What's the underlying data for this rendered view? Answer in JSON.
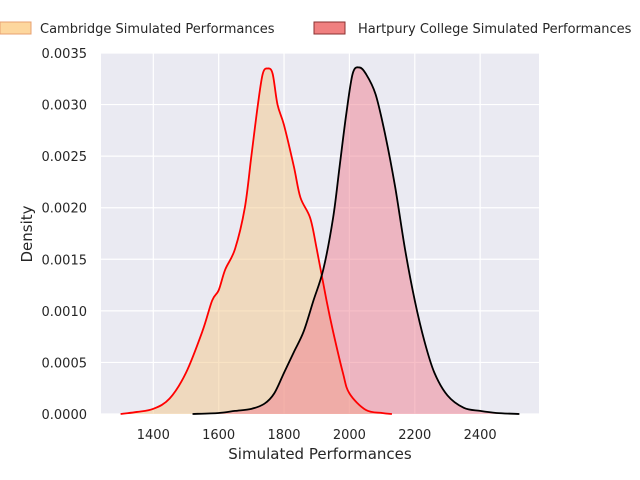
{
  "chart_data": {
    "type": "area",
    "xlabel": "Simulated Performances",
    "ylabel": "Density",
    "xlim": [
      1240,
      2580
    ],
    "ylim": [
      0,
      0.0035
    ],
    "xticks": [
      1400,
      1600,
      1800,
      2000,
      2200,
      2400
    ],
    "xtick_labels": [
      "1400",
      "1600",
      "1800",
      "2000",
      "2200",
      "2400"
    ],
    "yticks": [
      0,
      0.0005,
      0.001,
      0.0015,
      0.002,
      0.0025,
      0.003,
      0.0035
    ],
    "ytick_labels": [
      "0.0000",
      "0.0005",
      "0.0010",
      "0.0015",
      "0.0020",
      "0.0025",
      "0.0030",
      "0.0035"
    ],
    "grid": true,
    "legend_position": "top",
    "series": [
      {
        "name": "Cambridge Simulated Performances",
        "fill_color": "#f3c88a",
        "line_color": "#ff0000",
        "legend_fill": "#fdd79e",
        "legend_edge": "#e8a070",
        "points": [
          [
            1300,
            0.0
          ],
          [
            1350,
            2e-05
          ],
          [
            1400,
            5e-05
          ],
          [
            1450,
            0.00015
          ],
          [
            1500,
            0.0004
          ],
          [
            1550,
            0.0008
          ],
          [
            1580,
            0.0011
          ],
          [
            1600,
            0.0012
          ],
          [
            1620,
            0.0014
          ],
          [
            1650,
            0.0016
          ],
          [
            1680,
            0.002
          ],
          [
            1700,
            0.0025
          ],
          [
            1720,
            0.003
          ],
          [
            1735,
            0.0033
          ],
          [
            1750,
            0.00335
          ],
          [
            1765,
            0.0033
          ],
          [
            1780,
            0.003
          ],
          [
            1800,
            0.0028
          ],
          [
            1830,
            0.0024
          ],
          [
            1850,
            0.0021
          ],
          [
            1880,
            0.0019
          ],
          [
            1900,
            0.0016
          ],
          [
            1930,
            0.0011
          ],
          [
            1950,
            0.0008
          ],
          [
            1980,
            0.0004
          ],
          [
            2000,
            0.0002
          ],
          [
            2050,
            4e-05
          ],
          [
            2100,
            1e-05
          ],
          [
            2130,
            0.0
          ]
        ]
      },
      {
        "name": "Hartpury College Simulated Performances",
        "fill_color": "#f08090",
        "line_color": "#000000",
        "legend_fill": "#f08080",
        "legend_edge": "#8a3030",
        "points": [
          [
            1520,
            0.0
          ],
          [
            1600,
            1e-05
          ],
          [
            1650,
            3e-05
          ],
          [
            1700,
            5e-05
          ],
          [
            1740,
            0.0001
          ],
          [
            1770,
            0.0002
          ],
          [
            1800,
            0.0004
          ],
          [
            1830,
            0.0006
          ],
          [
            1860,
            0.0008
          ],
          [
            1890,
            0.0011
          ],
          [
            1920,
            0.0014
          ],
          [
            1950,
            0.0019
          ],
          [
            1970,
            0.0024
          ],
          [
            1990,
            0.0029
          ],
          [
            2010,
            0.0033
          ],
          [
            2030,
            0.00336
          ],
          [
            2050,
            0.0033
          ],
          [
            2080,
            0.0031
          ],
          [
            2110,
            0.0027
          ],
          [
            2140,
            0.0022
          ],
          [
            2170,
            0.0016
          ],
          [
            2200,
            0.0011
          ],
          [
            2230,
            0.0007
          ],
          [
            2260,
            0.0004
          ],
          [
            2300,
            0.00018
          ],
          [
            2350,
            6e-05
          ],
          [
            2400,
            3e-05
          ],
          [
            2450,
            1e-05
          ],
          [
            2520,
            0.0
          ]
        ]
      }
    ]
  }
}
